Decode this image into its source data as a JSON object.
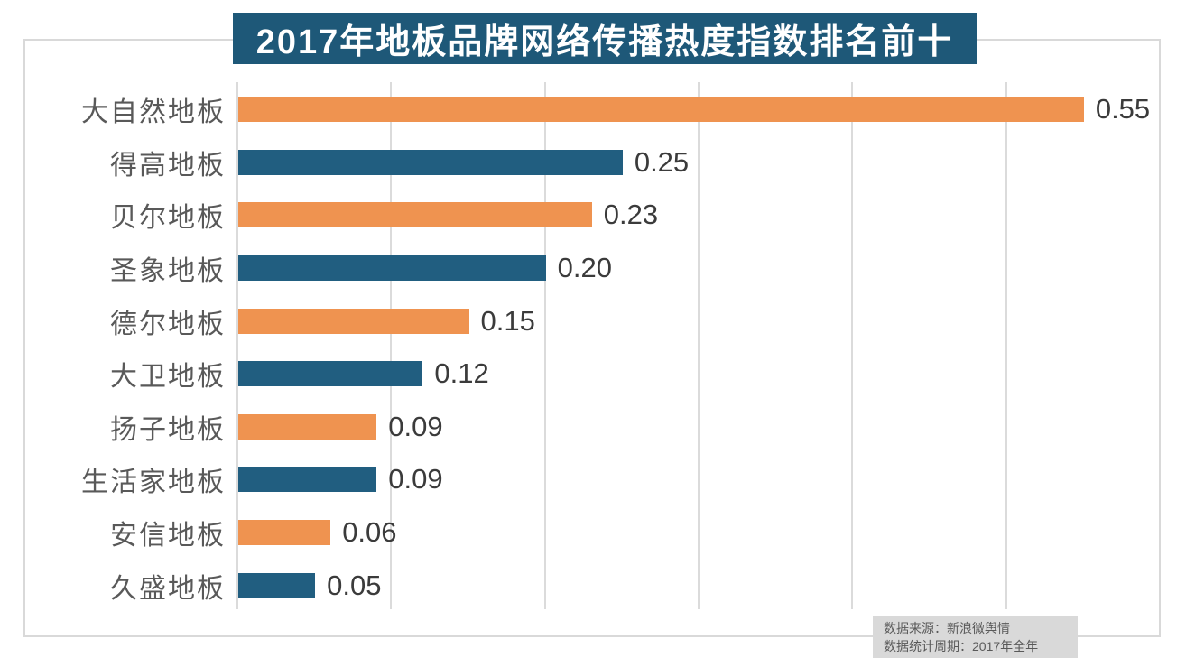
{
  "title": "2017年地板品牌网络传播热度指数排名前十",
  "chart_data": {
    "type": "bar",
    "orientation": "horizontal",
    "title": "2017年地板品牌网络传播热度指数排名前十",
    "categories": [
      "大自然地板",
      "得高地板",
      "贝尔地板",
      "圣象地板",
      "德尔地板",
      "大卫地板",
      "扬子地板",
      "生活家地板",
      "安信地板",
      "久盛地板"
    ],
    "values": [
      0.55,
      0.25,
      0.23,
      0.2,
      0.15,
      0.12,
      0.09,
      0.09,
      0.06,
      0.05
    ],
    "value_labels": [
      "0.55",
      "0.25",
      "0.23",
      "0.20",
      "0.15",
      "0.12",
      "0.09",
      "0.09",
      "0.06",
      "0.05"
    ],
    "xlabel": "",
    "ylabel": "",
    "xlim": [
      0,
      0.6
    ],
    "gridline_step": 0.1,
    "grid": true,
    "legend": false,
    "bar_colors_alternating": [
      "#EF9350",
      "#215E80"
    ]
  },
  "colors": {
    "title_bg": "#1E5878",
    "title_text": "#FFFFFF",
    "bar_orange": "#EF9350",
    "bar_blue": "#215E80",
    "grid_line": "#DBDBDB",
    "frame_border": "#D9D9D9",
    "category_label": "#595959",
    "value_label": "#3B3B3B",
    "source_bg": "#D9D9D9",
    "source_text": "#595959",
    "background": "#FFFFFF"
  },
  "source_box": {
    "line1": "数据来源：新浪微舆情",
    "line2": "数据统计周期：2017年全年"
  }
}
